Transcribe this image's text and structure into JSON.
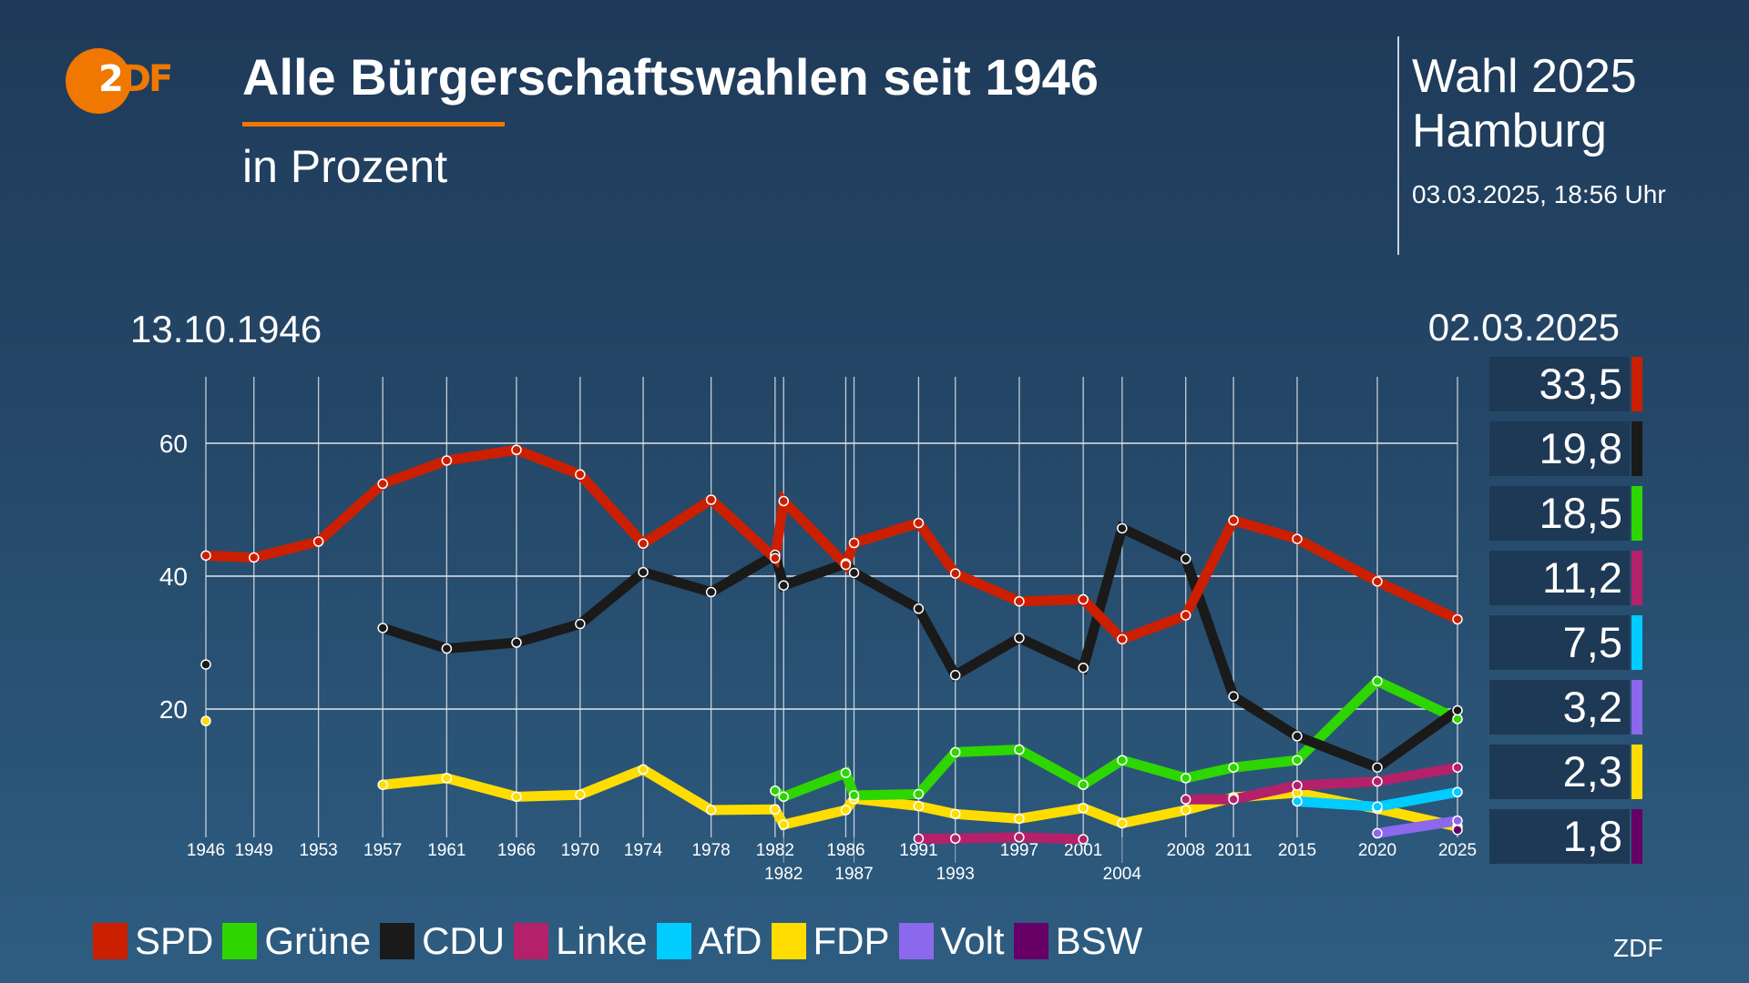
{
  "header": {
    "logo_text": "ZDF",
    "title": "Alle Bürgerschaftswahlen seit 1946",
    "subtitle": "in Prozent",
    "side_title_1": "Wahl 2025",
    "side_title_2": "Hamburg",
    "timestamp": "03.03.2025, 18:56 Uhr",
    "accent_color": "#f07800"
  },
  "chart_data": {
    "type": "line",
    "date_start_label": "13.10.1946",
    "date_end_label": "02.03.2025",
    "x": [
      "1946-10-13",
      "1949-10-16",
      "1953-11-01",
      "1957-11-10",
      "1961-11-12",
      "1966-03-27",
      "1970-03-22",
      "1974-03-03",
      "1978-06-04",
      "1982-06-06",
      "1982-12-19",
      "1986-11-09",
      "1987-05-17",
      "1991-06-02",
      "1993-09-19",
      "1997-09-21",
      "2001-09-23",
      "2004-02-29",
      "2008-02-24",
      "2011-02-20",
      "2015-02-15",
      "2020-02-23",
      "2025-03-02"
    ],
    "x_tick_labels": [
      "1946",
      "1949",
      "1953",
      "1957",
      "1961",
      "1966",
      "1970",
      "1974",
      "1978",
      "1982",
      "1982",
      "1986",
      "1987",
      "1991",
      "1993",
      "1997",
      "2001",
      "2004",
      "2008",
      "2011",
      "2015",
      "2020",
      "2025"
    ],
    "y_ticks": [
      20,
      40,
      60
    ],
    "ylim": [
      0,
      70
    ],
    "grid": true,
    "legend_position": "bottom",
    "series": [
      {
        "name": "FDP",
        "color": "#ffdd00",
        "values": [
          18.2,
          null,
          null,
          8.6,
          9.6,
          6.8,
          7.1,
          10.9,
          4.8,
          4.9,
          2.6,
          4.8,
          6.5,
          5.4,
          4.2,
          3.5,
          5.1,
          2.8,
          4.8,
          6.7,
          7.4,
          5.0,
          2.3
        ]
      },
      {
        "name": "Linke",
        "color": "#b4216a",
        "values": [
          null,
          null,
          null,
          null,
          null,
          null,
          null,
          null,
          null,
          null,
          null,
          null,
          null,
          0.5,
          0.5,
          0.7,
          0.4,
          null,
          6.4,
          6.4,
          8.5,
          9.1,
          11.2
        ]
      },
      {
        "name": "AfD",
        "color": "#00ccff",
        "values": [
          null,
          null,
          null,
          null,
          null,
          null,
          null,
          null,
          null,
          null,
          null,
          null,
          null,
          null,
          null,
          null,
          null,
          null,
          null,
          null,
          6.1,
          5.3,
          7.5
        ]
      },
      {
        "name": "Volt",
        "color": "#8b68ec",
        "values": [
          null,
          null,
          null,
          null,
          null,
          null,
          null,
          null,
          null,
          null,
          null,
          null,
          null,
          null,
          null,
          null,
          null,
          null,
          null,
          null,
          null,
          1.3,
          3.2
        ]
      },
      {
        "name": "BSW",
        "color": "#660066",
        "values": [
          null,
          null,
          null,
          null,
          null,
          null,
          null,
          null,
          null,
          null,
          null,
          null,
          null,
          null,
          null,
          null,
          null,
          null,
          null,
          null,
          null,
          null,
          1.8
        ]
      },
      {
        "name": "Grüne",
        "color": "#2ed600",
        "values": [
          null,
          null,
          null,
          null,
          null,
          null,
          null,
          null,
          null,
          7.7,
          6.8,
          10.4,
          7.0,
          7.2,
          13.5,
          13.9,
          8.6,
          12.3,
          9.6,
          11.2,
          12.3,
          24.2,
          18.5
        ]
      },
      {
        "name": "CDU",
        "color": "#1a1a1a",
        "values": [
          26.7,
          null,
          null,
          32.2,
          29.1,
          30.0,
          32.8,
          40.6,
          37.6,
          43.2,
          38.6,
          41.9,
          40.5,
          35.1,
          25.1,
          30.7,
          26.2,
          47.2,
          42.6,
          21.9,
          15.9,
          11.2,
          19.8
        ]
      },
      {
        "name": "SPD",
        "color": "#cc1f00",
        "values": [
          43.1,
          42.8,
          45.2,
          53.9,
          57.4,
          59.0,
          55.3,
          44.9,
          51.5,
          42.7,
          51.3,
          41.7,
          45.0,
          48.0,
          40.4,
          36.2,
          36.5,
          30.5,
          34.1,
          48.4,
          45.6,
          39.2,
          33.5
        ]
      }
    ],
    "latest_results": [
      {
        "party": "SPD",
        "value": "33,5",
        "color": "#cc1f00"
      },
      {
        "party": "CDU",
        "value": "19,8",
        "color": "#1a1a1a"
      },
      {
        "party": "Grüne",
        "value": "18,5",
        "color": "#2ed600"
      },
      {
        "party": "Linke",
        "value": "11,2",
        "color": "#b4216a"
      },
      {
        "party": "AfD",
        "value": "7,5",
        "color": "#00ccff"
      },
      {
        "party": "Volt",
        "value": "3,2",
        "color": "#8b68ec"
      },
      {
        "party": "FDP",
        "value": "2,3",
        "color": "#ffdd00"
      },
      {
        "party": "BSW",
        "value": "1,8",
        "color": "#660066"
      }
    ]
  },
  "legend": [
    {
      "label": "SPD",
      "color": "#cc1f00"
    },
    {
      "label": "Grüne",
      "color": "#2ed600"
    },
    {
      "label": "CDU",
      "color": "#1a1a1a"
    },
    {
      "label": "Linke",
      "color": "#b4216a"
    },
    {
      "label": "AfD",
      "color": "#00ccff"
    },
    {
      "label": "FDP",
      "color": "#ffdd00"
    },
    {
      "label": "Volt",
      "color": "#8b68ec"
    },
    {
      "label": "BSW",
      "color": "#660066"
    }
  ],
  "footer": {
    "credit": "ZDF"
  }
}
